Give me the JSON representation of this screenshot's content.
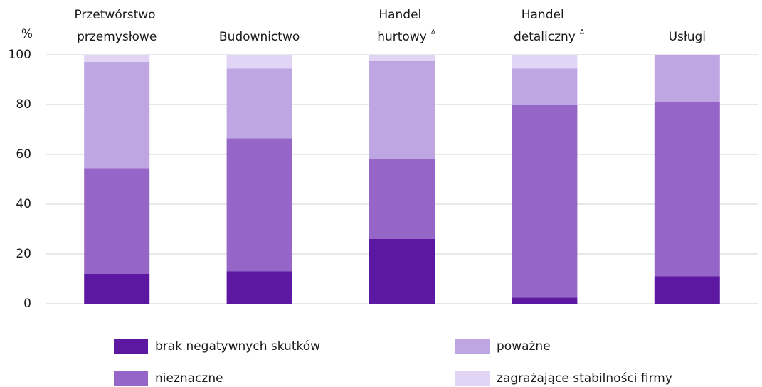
{
  "chart_data": {
    "type": "stacked_bar",
    "y_label": "%",
    "categories": [
      "Przetwórstwo przemysłowe",
      "Budownictwo",
      "Handel hurtowy",
      "Handel detaliczny",
      "Usługi"
    ],
    "category_marks": [
      null,
      null,
      "Δ",
      "Δ",
      null
    ],
    "series": [
      {
        "name": "brak negatywnych skutków",
        "color": "#5c18a0",
        "values": [
          12,
          13,
          26,
          2.5,
          11
        ]
      },
      {
        "name": "nieznaczne",
        "color": "#9565c8",
        "values": [
          42.5,
          53.5,
          32,
          77.5,
          70
        ]
      },
      {
        "name": "poważne",
        "color": "#bea6e3",
        "values": [
          42.7,
          28,
          39.5,
          14.5,
          19
        ]
      },
      {
        "name": "zagrażające stabilności firmy",
        "color": "#e2d4f5",
        "values": [
          2.8,
          5.5,
          2.5,
          5.5,
          0
        ]
      }
    ],
    "ylim": [
      0,
      100
    ],
    "yticks": [
      0,
      20,
      40,
      60,
      80,
      100
    ],
    "grid": true
  }
}
